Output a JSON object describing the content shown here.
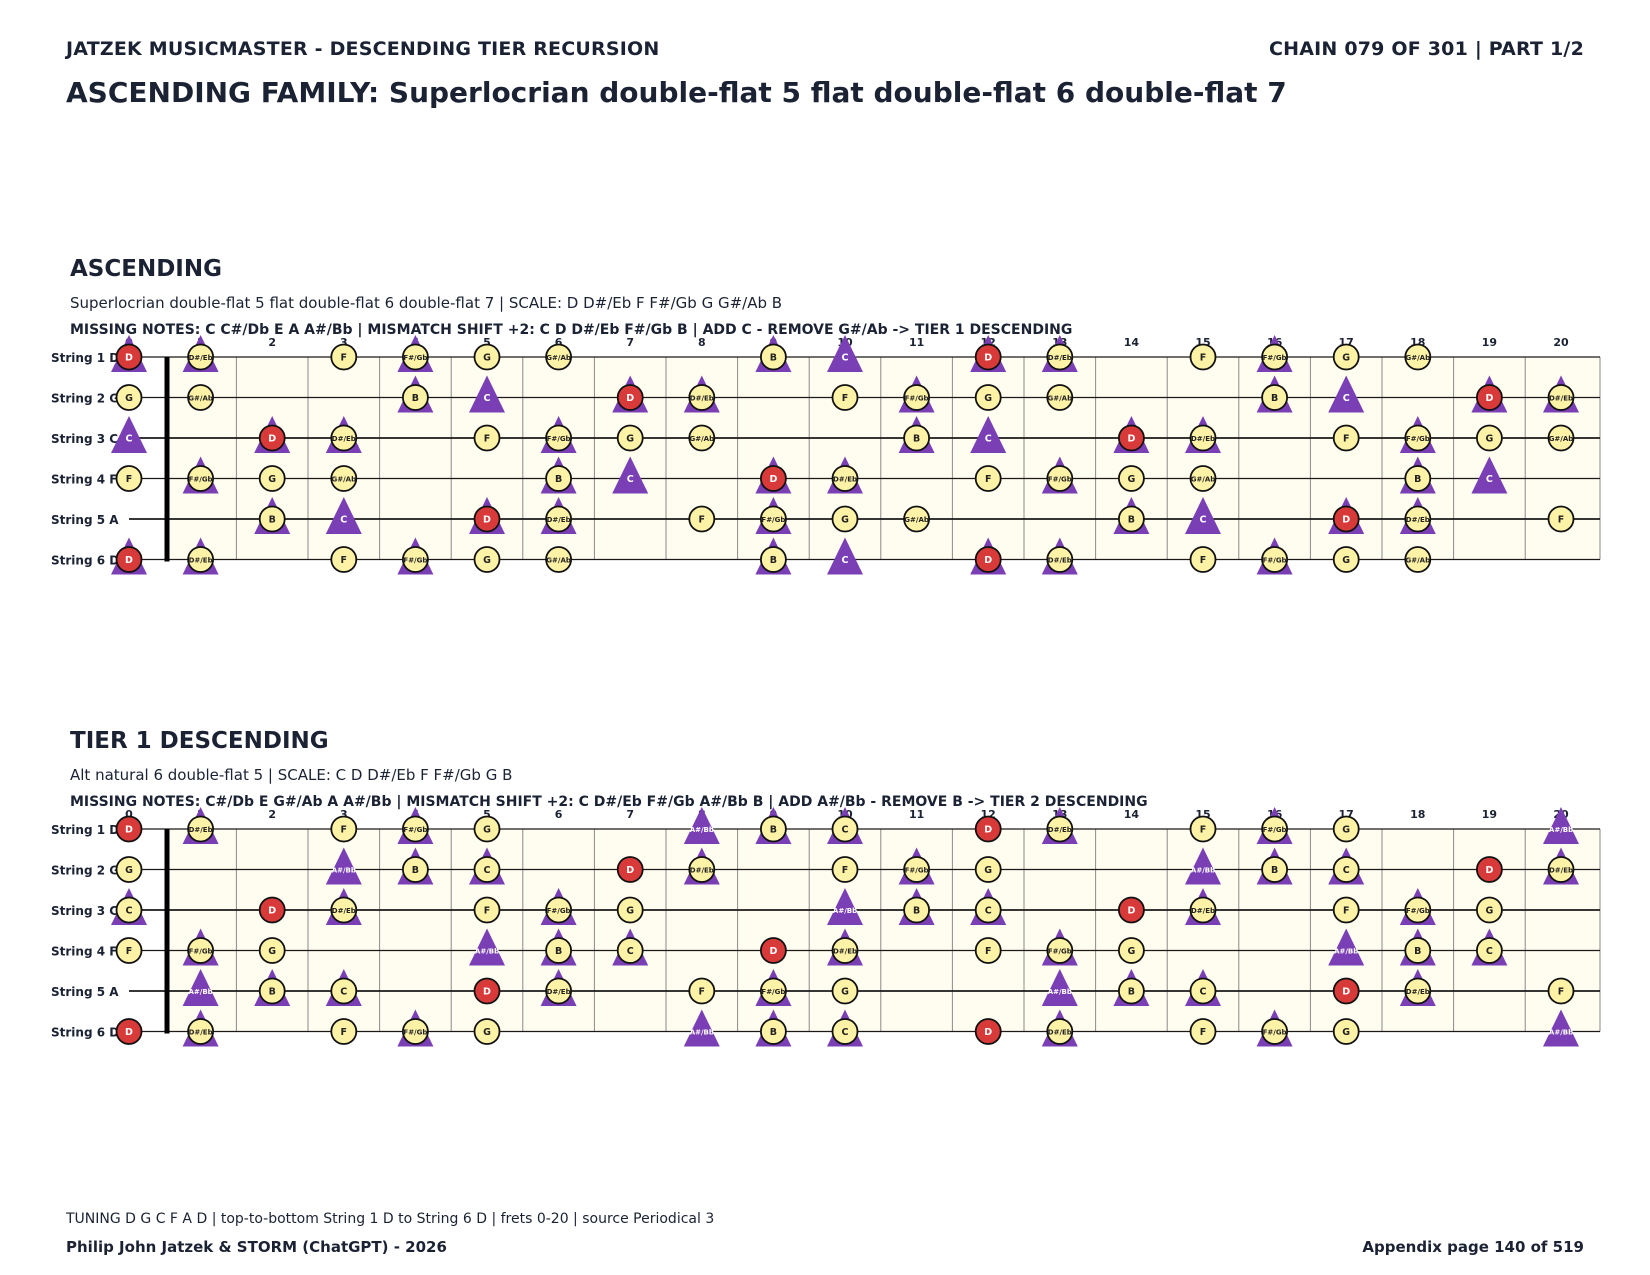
{
  "header": {
    "left": "JATZEK MUSICMASTER - DESCENDING TIER RECURSION",
    "right": "CHAIN 079 OF 301  |  PART 1/2"
  },
  "main_title": "ASCENDING FAMILY: Superlocrian double-flat 5 flat double-flat 6 double-flat 7",
  "fretboard": {
    "strings": [
      {
        "label": "String 1 D",
        "open": "D"
      },
      {
        "label": "String 2 G",
        "open": "G"
      },
      {
        "label": "String 3 C",
        "open": "C"
      },
      {
        "label": "String 4 F",
        "open": "F"
      },
      {
        "label": "String 5 A",
        "open": "A"
      },
      {
        "label": "String 6 D",
        "open": "D"
      }
    ],
    "frets": [
      "0",
      "1",
      "2",
      "3",
      "4",
      "5",
      "6",
      "7",
      "8",
      "9",
      "10",
      "11",
      "12",
      "13",
      "14",
      "15",
      "16",
      "17",
      "18",
      "19",
      "20"
    ],
    "chromatic": [
      "C",
      "C#/Db",
      "D",
      "D#/Eb",
      "E",
      "F",
      "F#/Gb",
      "G",
      "G#/Ab",
      "A",
      "A#/Bb",
      "B"
    ],
    "colors": {
      "root": "#d83a3a",
      "note": "#fdf2a6",
      "marker": "#7b3fb5",
      "board": "#fffdf0",
      "line": "#1a1a1a"
    }
  },
  "sections": [
    {
      "title": "ASCENDING",
      "subtitle": "Superlocrian double-flat 5 flat double-flat 6 double-flat 7  |  SCALE: D D#/Eb F F#/Gb G G#/Ab B",
      "info": "MISSING NOTES: C C#/Db E A A#/Bb  |  MISMATCH SHIFT +2: C D D#/Eb F#/Gb B  |  ADD C - REMOVE G#/Ab -> TIER 1 DESCENDING",
      "root": "D",
      "scale": [
        "D",
        "D#/Eb",
        "F",
        "F#/Gb",
        "G",
        "G#/Ab",
        "B"
      ],
      "markers": [
        "C",
        "D",
        "D#/Eb",
        "F#/Gb",
        "B"
      ]
    },
    {
      "title": "TIER 1 DESCENDING",
      "subtitle": "Alt natural 6 double-flat 5  |  SCALE: C D D#/Eb F F#/Gb G B",
      "info": "MISSING NOTES: C#/Db E G#/Ab A A#/Bb  |  MISMATCH SHIFT +2: C D#/Eb F#/Gb A#/Bb B  |  ADD A#/Bb - REMOVE B -> TIER 2 DESCENDING",
      "root": "D",
      "scale": [
        "C",
        "D",
        "D#/Eb",
        "F",
        "F#/Gb",
        "G",
        "B"
      ],
      "markers": [
        "C",
        "D#/Eb",
        "F#/Gb",
        "A#/Bb",
        "B"
      ]
    }
  ],
  "footer": {
    "note": "TUNING D G C F A D | top-to-bottom String 1 D to String 6 D | frets 0-20 | source Periodical 3",
    "left": "Philip John Jatzek & STORM (ChatGPT) - 2026",
    "right": "Appendix page 140 of 519"
  }
}
